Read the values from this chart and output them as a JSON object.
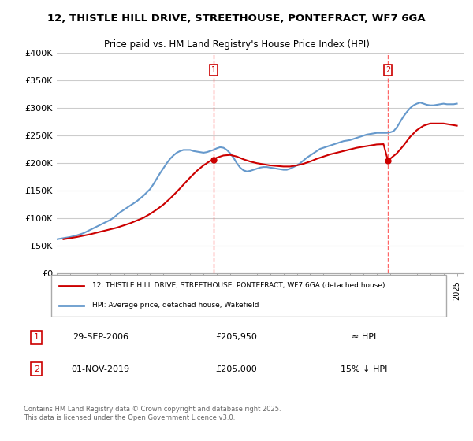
{
  "title": "12, THISTLE HILL DRIVE, STREETHOUSE, PONTEFRACT, WF7 6GA",
  "subtitle": "Price paid vs. HM Land Registry's House Price Index (HPI)",
  "ylabel": "",
  "ylim": [
    0,
    400000
  ],
  "yticks": [
    0,
    50000,
    100000,
    150000,
    200000,
    250000,
    300000,
    350000,
    400000
  ],
  "ytick_labels": [
    "£0",
    "£50K",
    "£100K",
    "£150K",
    "£200K",
    "£250K",
    "£300K",
    "£350K",
    "£400K"
  ],
  "sale1_date": "29-SEP-2006",
  "sale1_price": 205950,
  "sale1_note": "≈ HPI",
  "sale2_date": "01-NOV-2019",
  "sale2_price": 205000,
  "sale2_note": "15% ↓ HPI",
  "legend_line1": "12, THISTLE HILL DRIVE, STREETHOUSE, PONTEFRACT, WF7 6GA (detached house)",
  "legend_line2": "HPI: Average price, detached house, Wakefield",
  "footer": "Contains HM Land Registry data © Crown copyright and database right 2025.\nThis data is licensed under the Open Government Licence v3.0.",
  "hpi_color": "#6699cc",
  "price_color": "#cc0000",
  "vline_color": "#ff6666",
  "background_color": "#f8f8f8",
  "grid_color": "#cccccc",
  "hpi_data_x": [
    1995.0,
    1995.25,
    1995.5,
    1995.75,
    1996.0,
    1996.25,
    1996.5,
    1996.75,
    1997.0,
    1997.25,
    1997.5,
    1997.75,
    1998.0,
    1998.25,
    1998.5,
    1998.75,
    1999.0,
    1999.25,
    1999.5,
    1999.75,
    2000.0,
    2000.25,
    2000.5,
    2000.75,
    2001.0,
    2001.25,
    2001.5,
    2001.75,
    2002.0,
    2002.25,
    2002.5,
    2002.75,
    2003.0,
    2003.25,
    2003.5,
    2003.75,
    2004.0,
    2004.25,
    2004.5,
    2004.75,
    2005.0,
    2005.25,
    2005.5,
    2005.75,
    2006.0,
    2006.25,
    2006.5,
    2006.75,
    2007.0,
    2007.25,
    2007.5,
    2007.75,
    2008.0,
    2008.25,
    2008.5,
    2008.75,
    2009.0,
    2009.25,
    2009.5,
    2009.75,
    2010.0,
    2010.25,
    2010.5,
    2010.75,
    2011.0,
    2011.25,
    2011.5,
    2011.75,
    2012.0,
    2012.25,
    2012.5,
    2012.75,
    2013.0,
    2013.25,
    2013.5,
    2013.75,
    2014.0,
    2014.25,
    2014.5,
    2014.75,
    2015.0,
    2015.25,
    2015.5,
    2015.75,
    2016.0,
    2016.25,
    2016.5,
    2016.75,
    2017.0,
    2017.25,
    2017.5,
    2017.75,
    2018.0,
    2018.25,
    2018.5,
    2018.75,
    2019.0,
    2019.25,
    2019.5,
    2019.75,
    2020.0,
    2020.25,
    2020.5,
    2020.75,
    2021.0,
    2021.25,
    2021.5,
    2021.75,
    2022.0,
    2022.25,
    2022.5,
    2022.75,
    2023.0,
    2023.25,
    2023.5,
    2023.75,
    2024.0,
    2024.25,
    2024.5,
    2024.75,
    2025.0
  ],
  "hpi_data_y": [
    62000,
    63000,
    64000,
    65000,
    66000,
    67500,
    69000,
    71000,
    73000,
    76000,
    79000,
    82000,
    85000,
    88000,
    91000,
    94000,
    97000,
    101000,
    106000,
    111000,
    115000,
    119000,
    123000,
    127000,
    131000,
    136000,
    141000,
    147000,
    153000,
    162000,
    172000,
    182000,
    191000,
    200000,
    208000,
    214000,
    219000,
    222000,
    224000,
    224000,
    224000,
    222000,
    221000,
    220000,
    219000,
    220000,
    222000,
    224000,
    227000,
    229000,
    228000,
    224000,
    218000,
    210000,
    200000,
    192000,
    187000,
    185000,
    186000,
    188000,
    190000,
    192000,
    193000,
    193000,
    192000,
    191000,
    190000,
    189000,
    188000,
    188000,
    190000,
    193000,
    196000,
    200000,
    205000,
    210000,
    214000,
    218000,
    222000,
    226000,
    228000,
    230000,
    232000,
    234000,
    236000,
    238000,
    240000,
    241000,
    242000,
    244000,
    246000,
    248000,
    250000,
    252000,
    253000,
    254000,
    255000,
    255000,
    255000,
    255000,
    256000,
    258000,
    265000,
    275000,
    285000,
    293000,
    300000,
    305000,
    308000,
    310000,
    308000,
    306000,
    305000,
    305000,
    306000,
    307000,
    308000,
    307000,
    307000,
    307000,
    308000
  ],
  "price_data_x": [
    1995.5,
    1996.0,
    1996.5,
    1997.0,
    1997.5,
    1998.0,
    1998.5,
    1999.0,
    1999.5,
    2000.0,
    2000.5,
    2001.0,
    2001.5,
    2002.0,
    2002.5,
    2003.0,
    2003.5,
    2004.0,
    2004.5,
    2005.0,
    2005.5,
    2006.0,
    2006.5,
    2006.75,
    2007.0,
    2007.5,
    2008.0,
    2008.5,
    2009.0,
    2009.5,
    2010.0,
    2010.5,
    2011.0,
    2011.5,
    2012.0,
    2012.5,
    2013.0,
    2013.5,
    2014.0,
    2014.5,
    2015.0,
    2015.5,
    2016.0,
    2016.5,
    2017.0,
    2017.5,
    2018.0,
    2018.5,
    2019.0,
    2019.5,
    2019.83,
    2020.0,
    2020.5,
    2021.0,
    2021.5,
    2022.0,
    2022.5,
    2023.0,
    2023.5,
    2024.0,
    2024.5,
    2025.0
  ],
  "price_data_y": [
    62000,
    64000,
    66000,
    68500,
    71000,
    74000,
    77000,
    80000,
    83000,
    87000,
    91000,
    96000,
    101000,
    108000,
    116000,
    125000,
    136000,
    148000,
    161000,
    174000,
    186000,
    196000,
    204000,
    205950,
    210000,
    214000,
    215000,
    212000,
    207000,
    203000,
    200000,
    198000,
    196000,
    195000,
    194000,
    194000,
    196000,
    199000,
    203000,
    208000,
    212000,
    216000,
    219000,
    222000,
    225000,
    228000,
    230000,
    232000,
    234000,
    234500,
    205000,
    208000,
    218000,
    232000,
    248000,
    260000,
    268000,
    272000,
    272000,
    272000,
    270000,
    268000
  ],
  "xlim_left": 1995.0,
  "xlim_right": 2025.5,
  "sale1_x": 2006.75,
  "sale2_x": 2019.83
}
